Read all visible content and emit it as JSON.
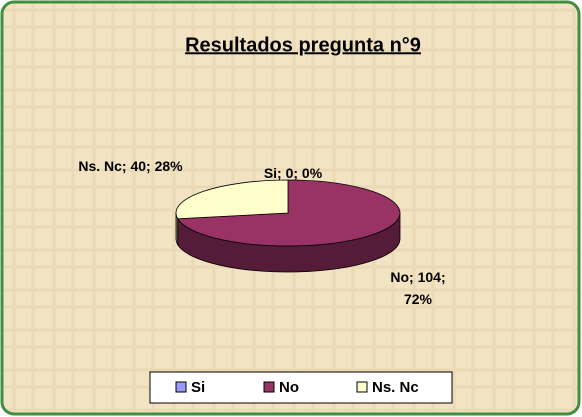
{
  "chart_data": {
    "type": "pie3d",
    "title": "Resultados pregunta n°9",
    "categories": [
      "Si",
      "No",
      "Ns. Nc"
    ],
    "values": [
      0,
      104,
      40
    ],
    "value_labels": [
      "Si; 0; 0%",
      "No; 104; 72%",
      "Ns. Nc; 40; 28%"
    ],
    "colors": [
      "#9999ff",
      "#993366",
      "#ffffcc"
    ],
    "legend": "bottom"
  }
}
